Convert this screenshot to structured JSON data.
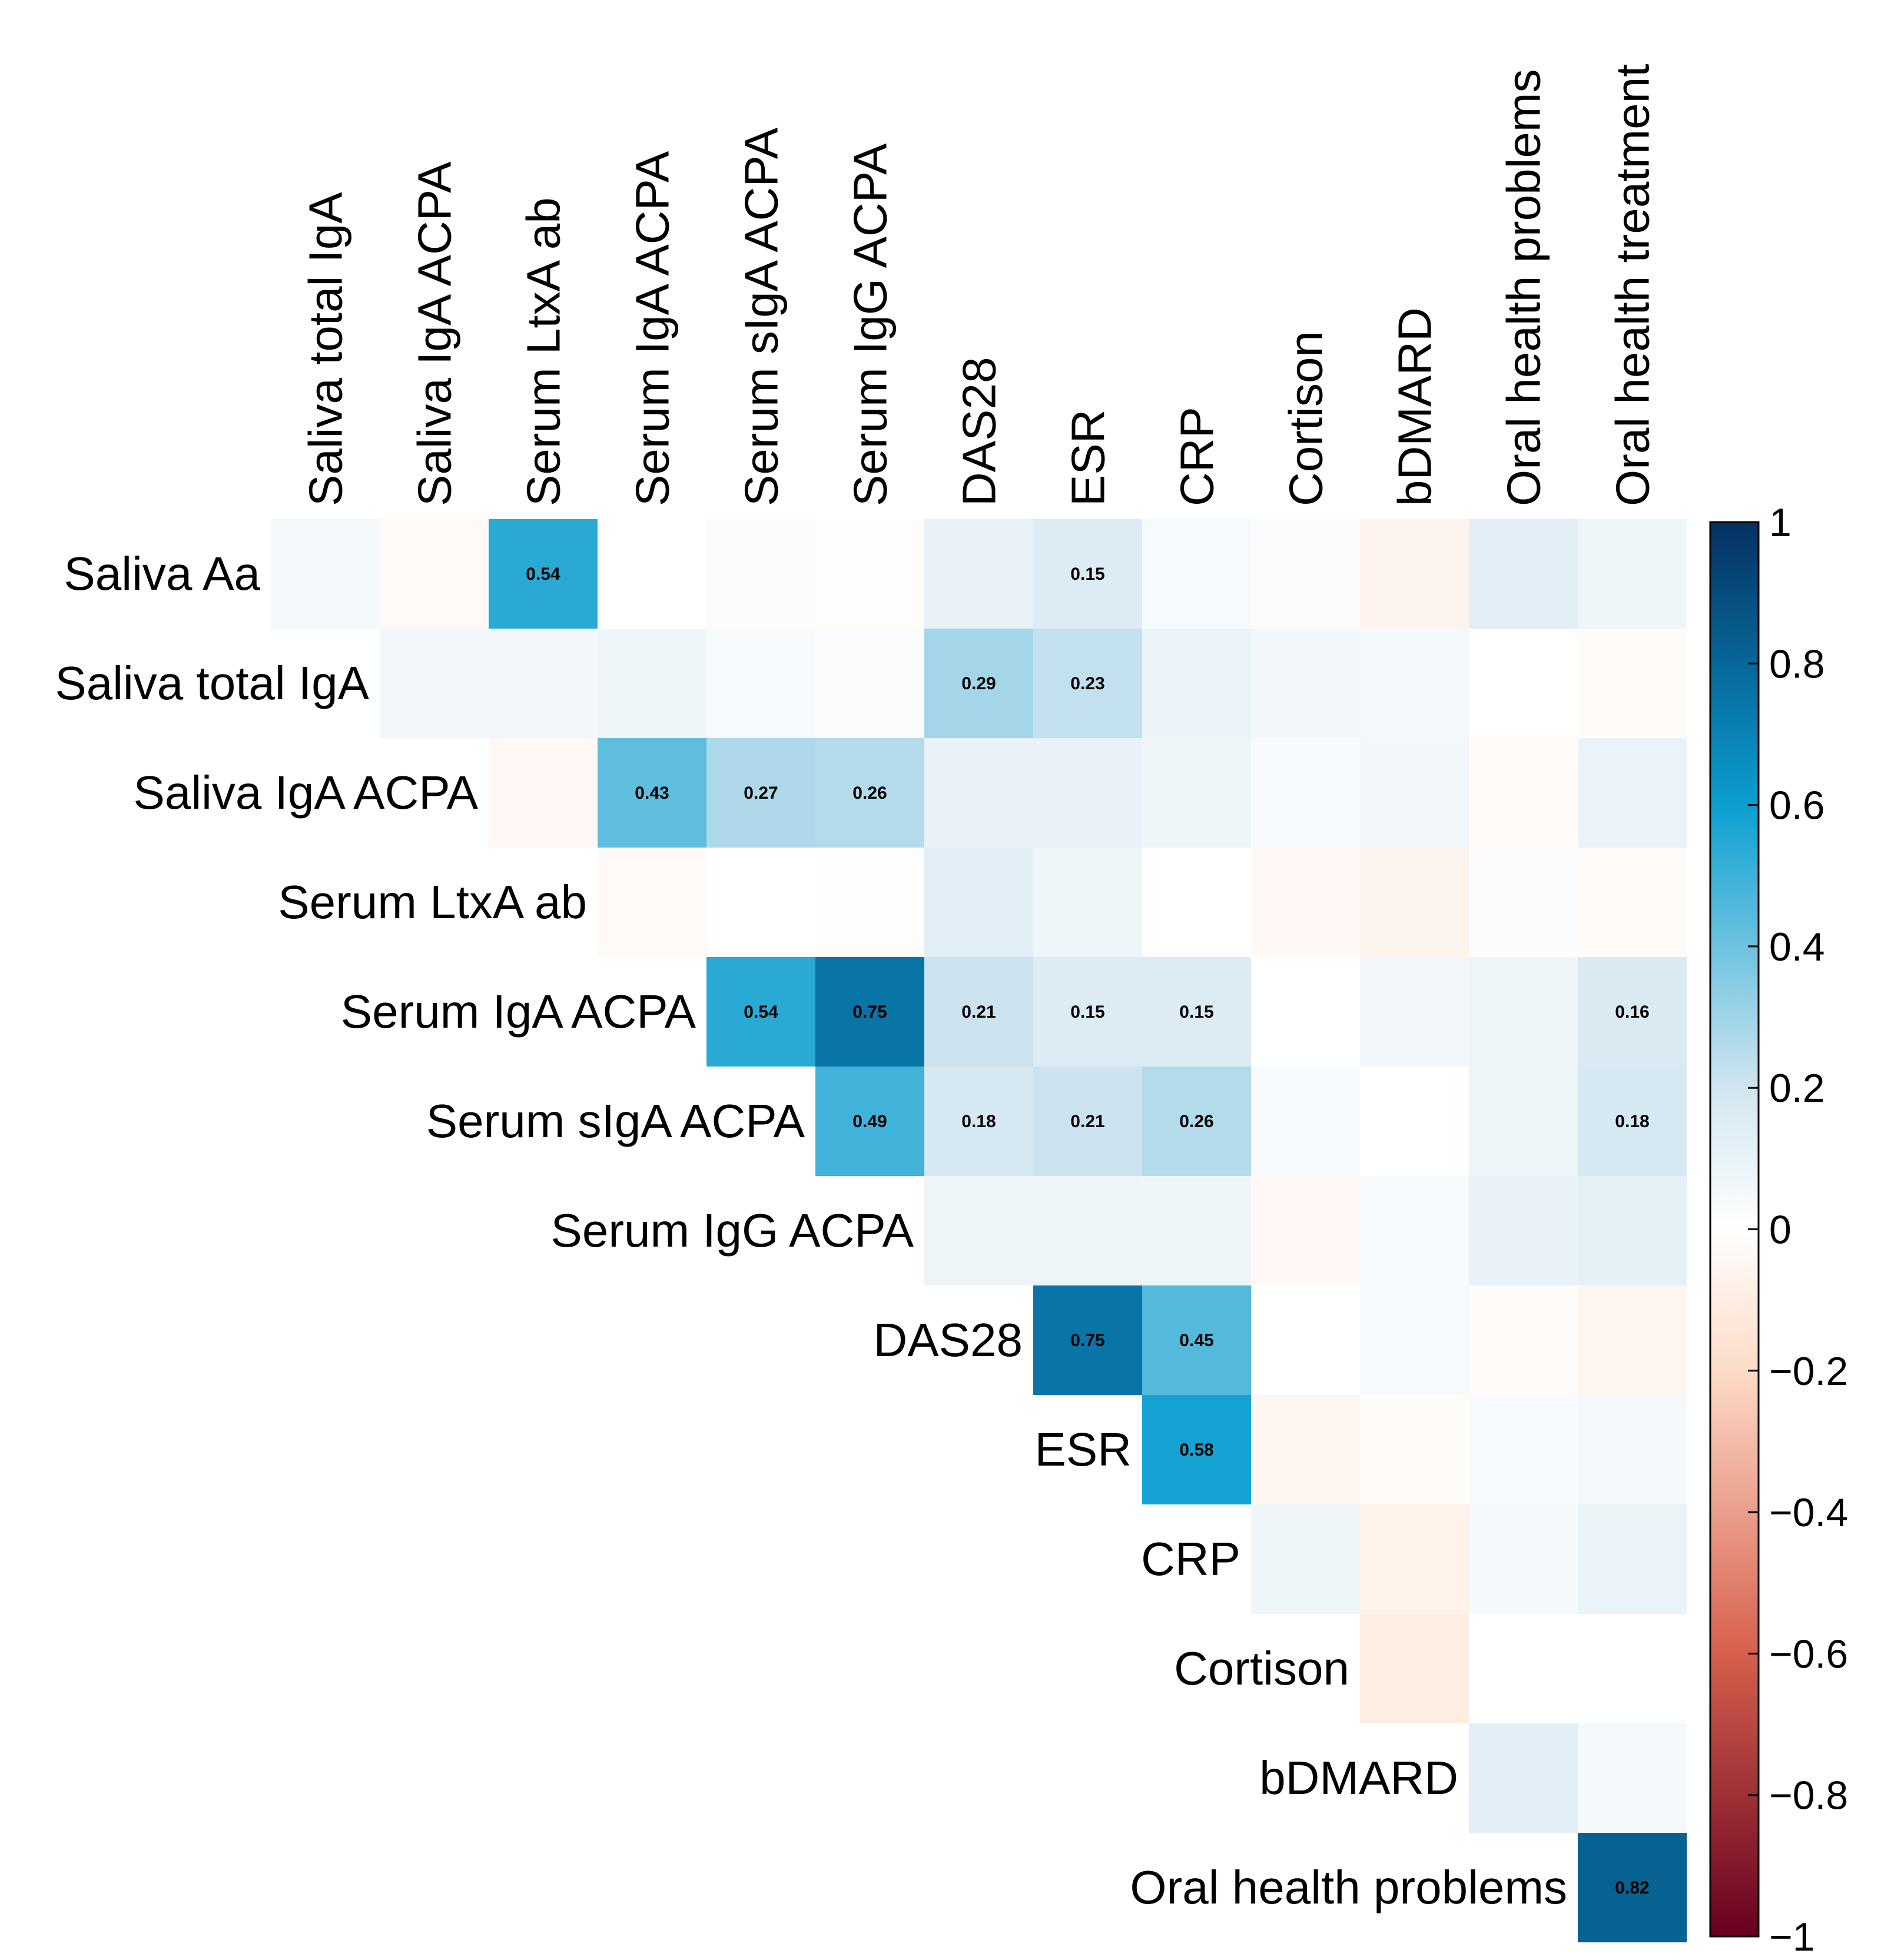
{
  "chart_data": {
    "type": "heatmap",
    "title": "",
    "column_labels": [
      "Saliva total IgA",
      "Saliva IgA ACPA",
      "Serum LtxA ab",
      "Serum IgA ACPA",
      "Serum sIgA ACPA",
      "Serum IgG ACPA",
      "DAS28",
      "ESR",
      "CRP",
      "Cortison",
      "bDMARD",
      "Oral health problems",
      "Oral health treatment"
    ],
    "row_labels": [
      "Saliva Aa",
      "Saliva total IgA",
      "Saliva IgA ACPA",
      "Serum LtxA ab",
      "Serum IgA ACPA",
      "Serum sIgA ACPA",
      "Serum IgG ACPA",
      "DAS28",
      "ESR",
      "CRP",
      "Cortison",
      "bDMARD",
      "Oral health problems"
    ],
    "values": [
      [
        0.05,
        -0.03,
        0.54,
        0.0,
        0.02,
        -0.01,
        0.1,
        0.15,
        0.04,
        0.02,
        -0.06,
        0.13,
        0.07
      ],
      [
        null,
        0.06,
        0.06,
        0.07,
        0.04,
        0.02,
        0.29,
        0.23,
        0.09,
        0.06,
        0.05,
        0.0,
        -0.02
      ],
      [
        null,
        null,
        -0.04,
        0.43,
        0.27,
        0.26,
        0.1,
        0.1,
        0.07,
        0.03,
        0.06,
        -0.02,
        0.09
      ],
      [
        null,
        null,
        null,
        -0.03,
        0.0,
        -0.01,
        0.13,
        0.07,
        0.0,
        -0.04,
        -0.06,
        0.02,
        -0.02
      ],
      [
        null,
        null,
        null,
        null,
        0.54,
        0.75,
        0.21,
        0.15,
        0.15,
        0.0,
        0.06,
        0.08,
        0.16
      ],
      [
        null,
        null,
        null,
        null,
        null,
        0.49,
        0.18,
        0.21,
        0.26,
        0.03,
        0.0,
        0.08,
        0.18
      ],
      [
        null,
        null,
        null,
        null,
        null,
        null,
        0.08,
        0.08,
        0.07,
        -0.04,
        0.04,
        0.1,
        0.11
      ],
      [
        null,
        null,
        null,
        null,
        null,
        null,
        null,
        0.75,
        0.45,
        0.0,
        0.04,
        -0.02,
        -0.05
      ],
      [
        null,
        null,
        null,
        null,
        null,
        null,
        null,
        null,
        0.58,
        -0.05,
        -0.02,
        0.03,
        0.05
      ],
      [
        null,
        null,
        null,
        null,
        null,
        null,
        null,
        null,
        null,
        0.07,
        -0.07,
        0.05,
        0.09
      ],
      [
        null,
        null,
        null,
        null,
        null,
        null,
        null,
        null,
        null,
        null,
        -0.1,
        0.0,
        0.0
      ],
      [
        null,
        null,
        null,
        null,
        null,
        null,
        null,
        null,
        null,
        null,
        null,
        0.12,
        0.05
      ],
      [
        null,
        null,
        null,
        null,
        null,
        null,
        null,
        null,
        null,
        null,
        null,
        null,
        0.82
      ]
    ],
    "cell_labels": [
      [
        null,
        null,
        "0.54",
        null,
        null,
        null,
        null,
        "0.15",
        null,
        null,
        null,
        null,
        null
      ],
      [
        null,
        null,
        null,
        null,
        null,
        null,
        "0.29",
        "0.23",
        null,
        null,
        null,
        null,
        null
      ],
      [
        null,
        null,
        null,
        "0.43",
        "0.27",
        "0.26",
        null,
        null,
        null,
        null,
        null,
        null,
        null
      ],
      [
        null,
        null,
        null,
        null,
        null,
        null,
        null,
        null,
        null,
        null,
        null,
        null,
        null
      ],
      [
        null,
        null,
        null,
        null,
        "0.54",
        "0.75",
        "0.21",
        "0.15",
        "0.15",
        null,
        null,
        null,
        "0.16"
      ],
      [
        null,
        null,
        null,
        null,
        null,
        "0.49",
        "0.18",
        "0.21",
        "0.26",
        null,
        null,
        null,
        "0.18"
      ],
      [
        null,
        null,
        null,
        null,
        null,
        null,
        null,
        null,
        null,
        null,
        null,
        null,
        null
      ],
      [
        null,
        null,
        null,
        null,
        null,
        null,
        null,
        "0.75",
        "0.45",
        null,
        null,
        null,
        null
      ],
      [
        null,
        null,
        null,
        null,
        null,
        null,
        null,
        null,
        "0.58",
        null,
        null,
        null,
        null
      ],
      [
        null,
        null,
        null,
        null,
        null,
        null,
        null,
        null,
        null,
        null,
        null,
        null,
        null
      ],
      [
        null,
        null,
        null,
        null,
        null,
        null,
        null,
        null,
        null,
        null,
        null,
        null,
        null
      ],
      [
        null,
        null,
        null,
        null,
        null,
        null,
        null,
        null,
        null,
        null,
        null,
        null,
        null
      ],
      [
        null,
        null,
        null,
        null,
        null,
        null,
        null,
        null,
        null,
        null,
        null,
        null,
        "0.82"
      ]
    ],
    "colorbar": {
      "range": [
        -1,
        1
      ],
      "ticks": [
        1,
        0.8,
        0.6,
        0.4,
        0.2,
        0,
        -0.2,
        -0.4,
        -0.6,
        -0.8,
        -1
      ],
      "tick_labels": [
        "1",
        "0.8",
        "0.6",
        "0.4",
        "0.2",
        "0",
        "−0.2",
        "−0.4",
        "−0.6",
        "−0.8",
        "−1"
      ]
    },
    "colors": {
      "negative_strong": "#67001f",
      "negative_mid": "#d6604d",
      "negative_light": "#fddbc7",
      "zero": "#ffffff",
      "positive_light": "#d1e5f0",
      "positive_mid": "#0a9fd0",
      "positive_strong": "#053061"
    }
  }
}
